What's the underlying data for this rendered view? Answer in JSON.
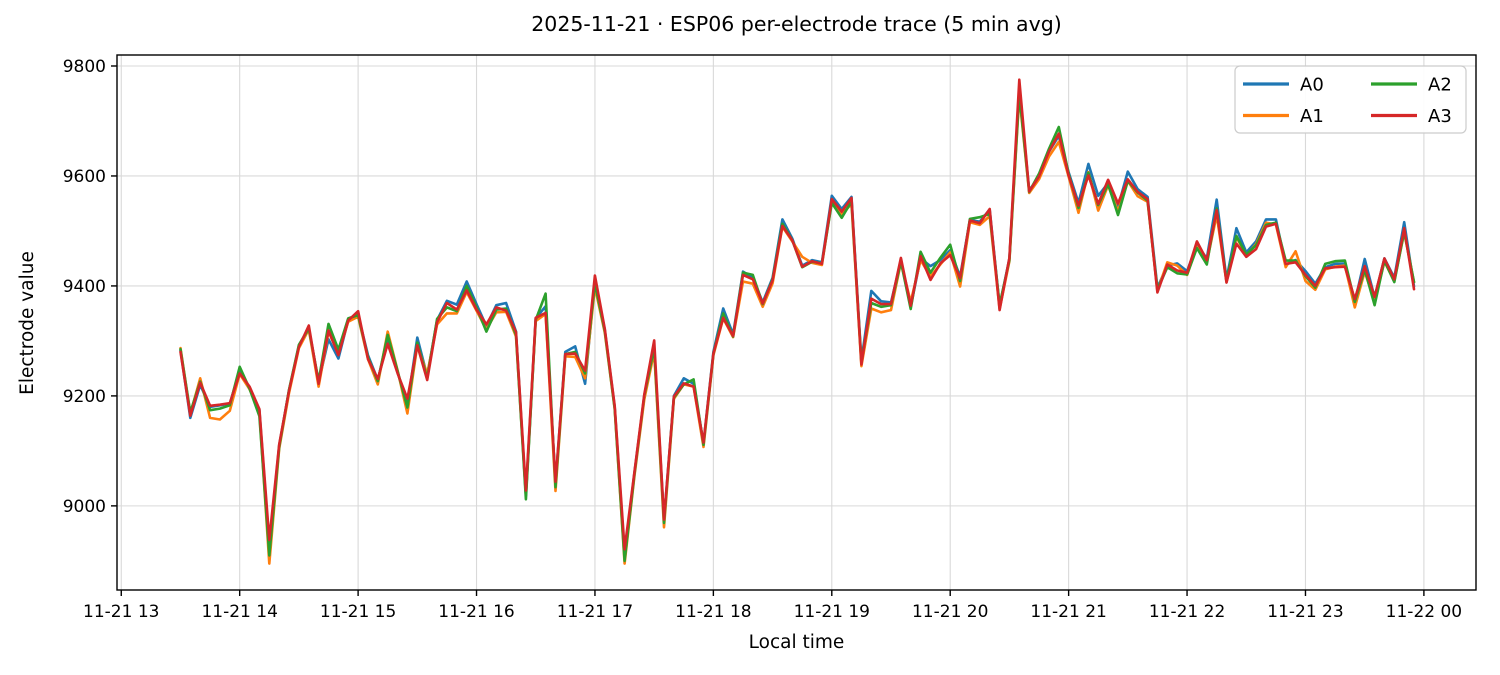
{
  "figure": {
    "title": "2025-11-21 · ESP06 per-electrode trace (5 min avg)",
    "xlabel": "Local time",
    "ylabel": "Electrode value"
  },
  "chart_data": {
    "type": "line",
    "title": "2025-11-21 · ESP06 per-electrode trace (5 min avg)",
    "xlabel": "Local time",
    "ylabel": "Electrode value",
    "grid": true,
    "legend_position": "upper right",
    "legend_columns": 2,
    "x_start": "2025-11-21 13:30",
    "x_step_minutes": 5,
    "x_start_hour": 13.5,
    "xlim_hours": [
      12.964,
      24.44
    ],
    "ylim": [
      8847,
      9820
    ],
    "x_tick_hours": [
      13,
      14,
      15,
      16,
      17,
      18,
      19,
      20,
      21,
      22,
      23,
      24
    ],
    "x_tick_labels": [
      "11-21 13",
      "11-21 14",
      "11-21 15",
      "11-21 16",
      "11-21 17",
      "11-21 18",
      "11-21 19",
      "11-21 20",
      "11-21 21",
      "11-21 22",
      "11-21 23",
      "11-22 00"
    ],
    "y_ticks": [
      9000,
      9200,
      9400,
      9600,
      9800
    ],
    "y_tick_labels": [
      "9000",
      "9200",
      "9400",
      "9600",
      "9800"
    ],
    "colors": {
      "A0": "#1f77b4",
      "A1": "#ff7f0e",
      "A2": "#2ca02c",
      "A3": "#d62728"
    },
    "series": [
      {
        "name": "A0",
        "color": "#1f77b4",
        "values": [
          9283,
          9160,
          9220,
          9180,
          9183,
          9186,
          9246,
          9215,
          9174,
          8925,
          9110,
          9210,
          9291,
          9323,
          9225,
          9303,
          9268,
          9338,
          9347,
          9274,
          9229,
          9302,
          9243,
          9184,
          9306,
          9236,
          9338,
          9373,
          9366,
          9408,
          9367,
          9327,
          9365,
          9369,
          9317,
          9018,
          9341,
          9363,
          9040,
          9280,
          9290,
          9222,
          9409,
          9320,
          9180,
          8910,
          9060,
          9198,
          9286,
          8974,
          9200,
          9232,
          9222,
          9114,
          9280,
          9359,
          9312,
          9426,
          9415,
          9370,
          9415,
          9521,
          9486,
          9437,
          9447,
          9443,
          9564,
          9540,
          9562,
          9264,
          9391,
          9372,
          9370,
          9446,
          9362,
          9450,
          9436,
          9447,
          9465,
          9417,
          9520,
          9517,
          9539,
          9363,
          9450,
          9757,
          9574,
          9598,
          9644,
          9673,
          9607,
          9551,
          9622,
          9564,
          9587,
          9544,
          9608,
          9576,
          9562,
          9397,
          9437,
          9441,
          9427,
          9475,
          9450,
          9557,
          9412,
          9505,
          9461,
          9481,
          9521,
          9521,
          9438,
          9447,
          9427,
          9404,
          9434,
          9440,
          9441,
          9371,
          9449,
          9379,
          9450,
          9415,
          9516,
          9399
        ]
      },
      {
        "name": "A1",
        "color": "#ff7f0e",
        "values": [
          9287,
          9167,
          9232,
          9160,
          9157,
          9173,
          9240,
          9212,
          9171,
          8895,
          9104,
          9205,
          9287,
          9321,
          9217,
          9317,
          9277,
          9335,
          9344,
          9267,
          9221,
          9317,
          9246,
          9168,
          9292,
          9240,
          9330,
          9350,
          9350,
          9389,
          9355,
          9321,
          9352,
          9353,
          9308,
          9020,
          9336,
          9349,
          9027,
          9272,
          9271,
          9232,
          9398,
          9315,
          9176,
          8895,
          9054,
          9194,
          9280,
          8961,
          9195,
          9221,
          9217,
          9107,
          9274,
          9341,
          9307,
          9408,
          9404,
          9362,
          9405,
          9508,
          9481,
          9453,
          9442,
          9438,
          9554,
          9530,
          9549,
          9254,
          9359,
          9352,
          9356,
          9443,
          9371,
          9447,
          9417,
          9439,
          9461,
          9399,
          9516,
          9511,
          9527,
          9358,
          9445,
          9746,
          9569,
          9594,
          9635,
          9662,
          9599,
          9533,
          9607,
          9537,
          9583,
          9536,
          9591,
          9563,
          9553,
          9391,
          9443,
          9437,
          9420,
          9471,
          9443,
          9529,
          9407,
          9489,
          9455,
          9476,
          9515,
          9512,
          9434,
          9463,
          9409,
          9393,
          9430,
          9435,
          9437,
          9361,
          9426,
          9372,
          9444,
          9409,
          9497,
          9407
        ]
      },
      {
        "name": "A2",
        "color": "#2ca02c",
        "values": [
          9285,
          9170,
          9226,
          9174,
          9177,
          9183,
          9253,
          9213,
          9163,
          8910,
          9107,
          9211,
          9293,
          9323,
          9227,
          9331,
          9284,
          9341,
          9347,
          9270,
          9227,
          9311,
          9245,
          9179,
          9297,
          9232,
          9340,
          9361,
          9354,
          9400,
          9361,
          9317,
          9357,
          9359,
          9311,
          9012,
          9338,
          9386,
          9034,
          9276,
          9280,
          9241,
          9405,
          9318,
          9177,
          8900,
          9057,
          9201,
          9288,
          8969,
          9197,
          9221,
          9230,
          9111,
          9276,
          9350,
          9308,
          9424,
          9420,
          9367,
          9412,
          9513,
          9483,
          9434,
          9444,
          9441,
          9551,
          9524,
          9554,
          9261,
          9369,
          9362,
          9365,
          9444,
          9358,
          9462,
          9424,
          9451,
          9475,
          9409,
          9522,
          9525,
          9531,
          9366,
          9447,
          9751,
          9571,
          9604,
          9649,
          9689,
          9604,
          9542,
          9606,
          9547,
          9585,
          9529,
          9591,
          9570,
          9555,
          9393,
          9434,
          9423,
          9421,
          9469,
          9439,
          9541,
          9409,
          9491,
          9457,
          9474,
          9511,
          9515,
          9446,
          9446,
          9418,
          9397,
          9440,
          9445,
          9446,
          9371,
          9430,
          9365,
          9446,
          9407,
          9499,
          9407
        ]
      },
      {
        "name": "A3",
        "color": "#d62728",
        "values": [
          9280,
          9164,
          9224,
          9182,
          9184,
          9187,
          9241,
          9217,
          9176,
          8938,
          9112,
          9209,
          9289,
          9328,
          9222,
          9319,
          9274,
          9337,
          9354,
          9267,
          9231,
          9295,
          9241,
          9195,
          9292,
          9229,
          9334,
          9369,
          9357,
          9392,
          9357,
          9330,
          9361,
          9355,
          9316,
          9028,
          9342,
          9351,
          9044,
          9276,
          9277,
          9246,
          9419,
          9322,
          9182,
          8921,
          9061,
          9203,
          9301,
          8975,
          9199,
          9223,
          9217,
          9115,
          9277,
          9342,
          9309,
          9420,
          9412,
          9368,
          9410,
          9509,
          9483,
          9435,
          9445,
          9440,
          9558,
          9535,
          9560,
          9257,
          9377,
          9367,
          9367,
          9451,
          9364,
          9454,
          9411,
          9441,
          9456,
          9414,
          9519,
          9514,
          9540,
          9356,
          9451,
          9775,
          9572,
          9599,
          9644,
          9677,
          9601,
          9546,
          9601,
          9549,
          9593,
          9550,
          9594,
          9571,
          9558,
          9388,
          9439,
          9428,
          9424,
          9481,
          9447,
          9538,
          9406,
          9477,
          9453,
          9467,
          9508,
          9513,
          9440,
          9443,
          9420,
          9400,
          9432,
          9434,
          9435,
          9376,
          9436,
          9380,
          9450,
          9412,
          9505,
          9394
        ]
      }
    ]
  }
}
